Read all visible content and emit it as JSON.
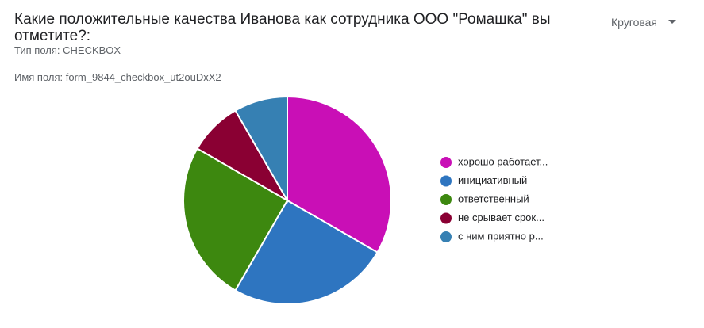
{
  "header": {
    "title": "Какие положительные качества Иванова как сотрудника ООО \"Ромашка\" вы отметите?:",
    "field_type": "Тип поля: CHECKBOX",
    "field_name": "Имя поля: form_9844_checkbox_ut2ouDxX2",
    "chart_selector": "Круговая"
  },
  "chart_data": {
    "type": "pie",
    "categories": [
      "хорошо работает...",
      "инициативный",
      "ответственный",
      "не срывает срок...",
      "с ним приятно р..."
    ],
    "values": [
      4,
      3,
      3,
      1,
      1
    ],
    "colors": [
      "#c90fb6",
      "#2e75c0",
      "#3d880f",
      "#8a0033",
      "#3680b3"
    ],
    "legend": "right"
  }
}
